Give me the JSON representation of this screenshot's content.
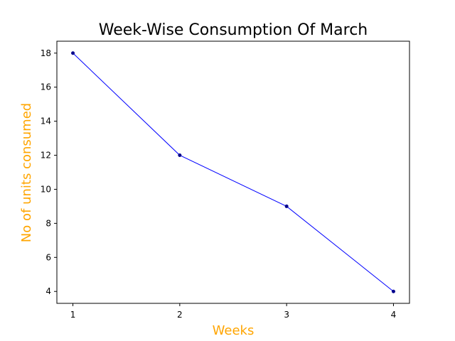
{
  "chart_data": {
    "type": "line",
    "title": "Week-Wise Consumption Of March",
    "xlabel": "Weeks",
    "ylabel": "No of units consumed",
    "x": [
      1,
      2,
      3,
      4
    ],
    "x_tick_labels": [
      "1",
      "2",
      "3",
      "4"
    ],
    "y_tick_labels": [
      "4",
      "6",
      "8",
      "10",
      "12",
      "14",
      "16",
      "18"
    ],
    "y_ticks": [
      4,
      6,
      8,
      10,
      12,
      14,
      16,
      18
    ],
    "xlim": [
      0.85,
      4.15
    ],
    "ylim": [
      3.3,
      18.7
    ],
    "series": [
      {
        "values": [
          18,
          12,
          9,
          4
        ],
        "color": "#0000ff",
        "marker": "point",
        "marker_color": "#00008b"
      }
    ],
    "label_color": "#ffa500",
    "grid": false,
    "legend": "none"
  }
}
